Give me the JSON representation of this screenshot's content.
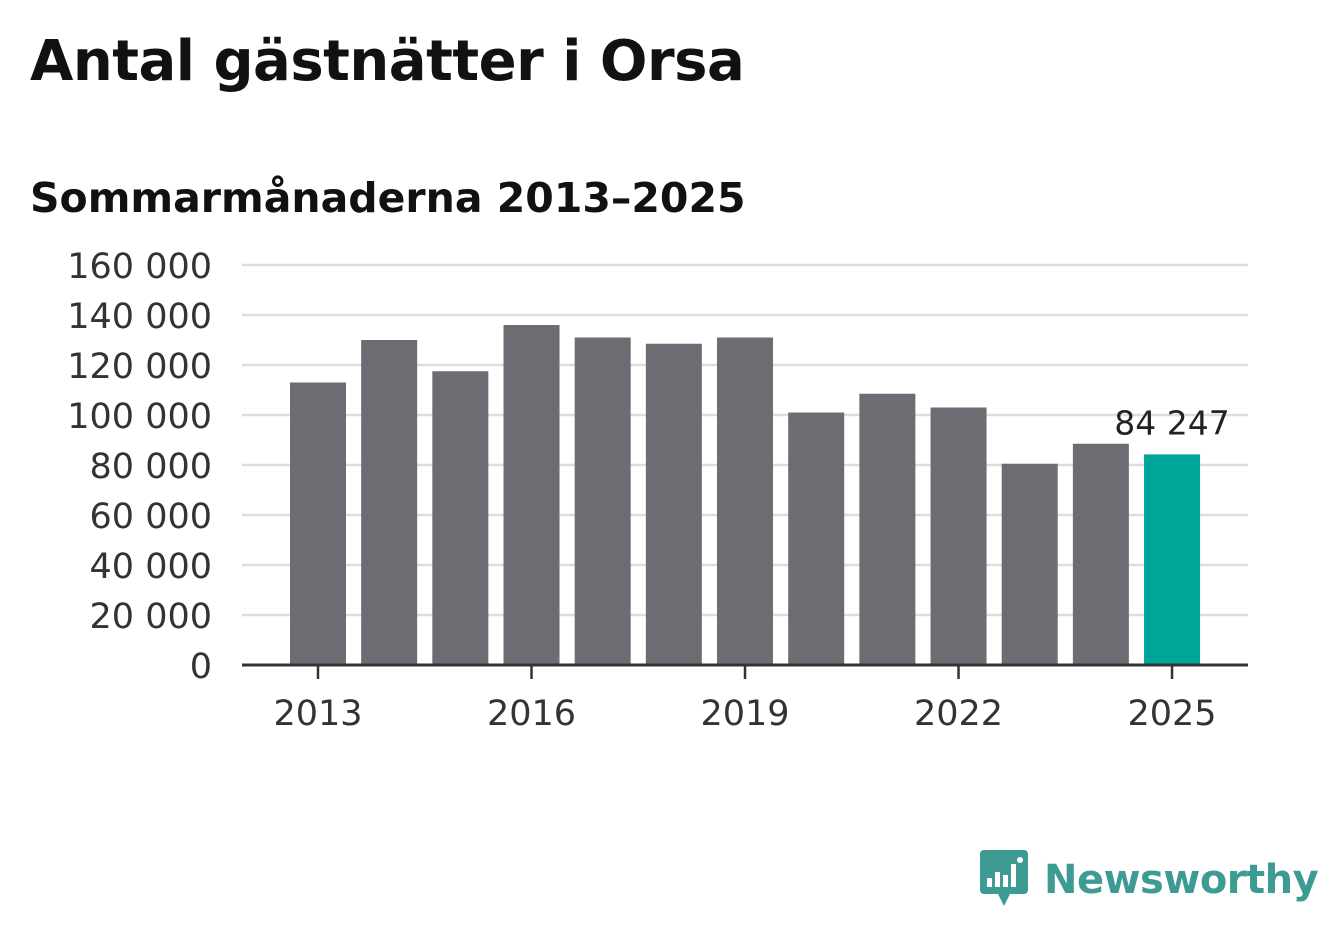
{
  "title": "Antal gästnätter i Orsa",
  "subtitle": "Sommarmånaderna 2013–2025",
  "brand": {
    "name": "Newsworthy",
    "color": "#3e9b94",
    "icon": "bar-chart-speech-bubble-icon"
  },
  "colors": {
    "bar": "#6d6c72",
    "highlight": "#00a599",
    "grid": "#dddddd",
    "axis": "#333333"
  },
  "chart_data": {
    "type": "bar",
    "x": [
      2013,
      2014,
      2015,
      2016,
      2017,
      2018,
      2019,
      2020,
      2021,
      2022,
      2023,
      2024,
      2025
    ],
    "values": [
      113000,
      130000,
      117500,
      136000,
      131000,
      128500,
      131000,
      101000,
      108500,
      103000,
      80500,
      88500,
      84247
    ],
    "highlight_index": 12,
    "value_labels": {
      "12": "84 247"
    },
    "ylim": [
      0,
      160000
    ],
    "yticks": [
      0,
      20000,
      40000,
      60000,
      80000,
      100000,
      120000,
      140000,
      160000
    ],
    "ytick_labels": [
      "0",
      "20 000",
      "40 000",
      "60 000",
      "80 000",
      "100 000",
      "120 000",
      "140 000",
      "160 000"
    ],
    "xticks": [
      "2013",
      "2016",
      "2019",
      "2022",
      "2025"
    ],
    "grid": true,
    "legend": "none"
  }
}
